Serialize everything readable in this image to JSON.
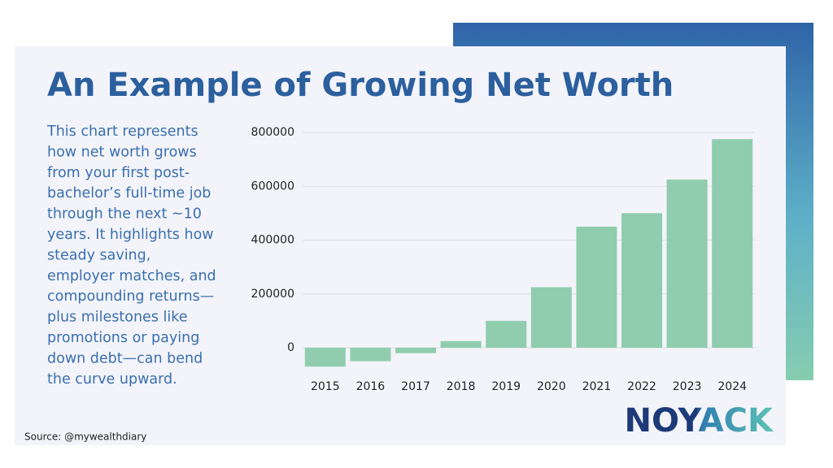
{
  "chart_data": {
    "type": "bar",
    "title": "An Example of Growing Net Worth",
    "categories": [
      "2015",
      "2016",
      "2017",
      "2018",
      "2019",
      "2020",
      "2021",
      "2022",
      "2023",
      "2024"
    ],
    "values": [
      -70000,
      -50000,
      -20000,
      25000,
      100000,
      225000,
      450000,
      500000,
      625000,
      775000
    ],
    "color": "#8fcdae",
    "ylim": [
      -80000,
      800000
    ],
    "yticks": [
      0,
      200000,
      400000,
      600000,
      800000
    ],
    "grid": true
  },
  "description": [
    "This chart represents",
    "how net worth grows",
    "from your first post-",
    "bachelor’s full-time job",
    "through the next ~10",
    "years. It highlights how",
    "steady saving,",
    "employer matches, and",
    "compounding returns—",
    "plus milestones like",
    "promotions or paying",
    "down debt—can bend",
    "the curve upward."
  ],
  "source": "Source:  @mywealthdiary",
  "logo": "NOYACK"
}
